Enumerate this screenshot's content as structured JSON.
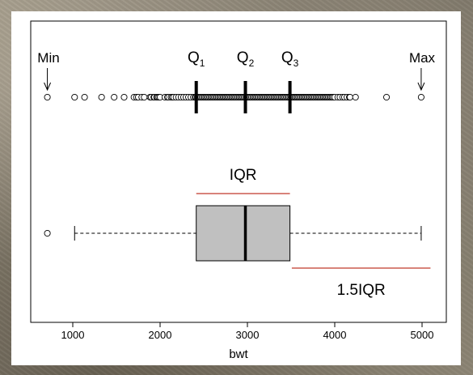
{
  "chart_data": {
    "type": "boxplot",
    "xlabel": "bwt",
    "xlim": [
      650,
      5100
    ],
    "ticks": [
      1000,
      2000,
      3000,
      4000,
      5000
    ],
    "tick_labels": [
      "1000",
      "2000",
      "3000",
      "4000",
      "5000"
    ],
    "summary": {
      "min": 709,
      "q1": 2414,
      "median": 2977,
      "q3": 3487,
      "max": 4990,
      "lower_whisker": 1021,
      "upper_whisker": 4990
    },
    "outliers": [
      709
    ],
    "strip_points": [
      709,
      1021,
      1135,
      1330,
      1474,
      1588,
      1701,
      1729,
      1750,
      1790,
      1818,
      1885,
      1899,
      1928,
      1936,
      1960,
      1970,
      1985,
      2000,
      2055,
      2084,
      2098,
      2125,
      2140,
      2155,
      2183,
      2211,
      2240,
      2268,
      2296,
      2325,
      2353,
      2381,
      2400,
      2410,
      2424,
      2438,
      2450,
      2466,
      2480,
      2495,
      2509,
      2523,
      2537,
      2551,
      2566,
      2580,
      2594,
      2608,
      2622,
      2637,
      2651,
      2665,
      2680,
      2693,
      2708,
      2722,
      2736,
      2750,
      2764,
      2778,
      2792,
      2807,
      2821,
      2835,
      2849,
      2863,
      2877,
      2892,
      2906,
      2920,
      2934,
      2948,
      2962,
      2977,
      2990,
      3005,
      3019,
      3033,
      3047,
      3062,
      3076,
      3090,
      3104,
      3118,
      3132,
      3147,
      3161,
      3175,
      3189,
      3203,
      3218,
      3232,
      3246,
      3260,
      3274,
      3289,
      3303,
      3317,
      3331,
      3345,
      3359,
      3374,
      3388,
      3402,
      3416,
      3430,
      3445,
      3459,
      3473,
      3487,
      3501,
      3515,
      3530,
      3544,
      3558,
      3572,
      3586,
      3600,
      3615,
      3629,
      3643,
      3657,
      3671,
      3685,
      3700,
      3714,
      3728,
      3742,
      3756,
      3770,
      3785,
      3799,
      3813,
      3827,
      3841,
      3856,
      3870,
      3884,
      3898,
      3912,
      3926,
      3941,
      3955,
      3969,
      3983,
      4000,
      4035,
      4060,
      4090,
      4111,
      4140,
      4167,
      4175,
      4238,
      4593,
      4990
    ],
    "annotations": {
      "min": "Min",
      "max": "Max",
      "q1_base": "Q",
      "q1_sub": "1",
      "q2_base": "Q",
      "q2_sub": "2",
      "q3_base": "Q",
      "q3_sub": "3",
      "iqr": "IQR",
      "iqr15": "1.5IQR"
    },
    "grid": false,
    "colors": {
      "box_fill": "#c0c0c0",
      "iqr_line": "#c0392b",
      "frame": "#000000"
    }
  }
}
